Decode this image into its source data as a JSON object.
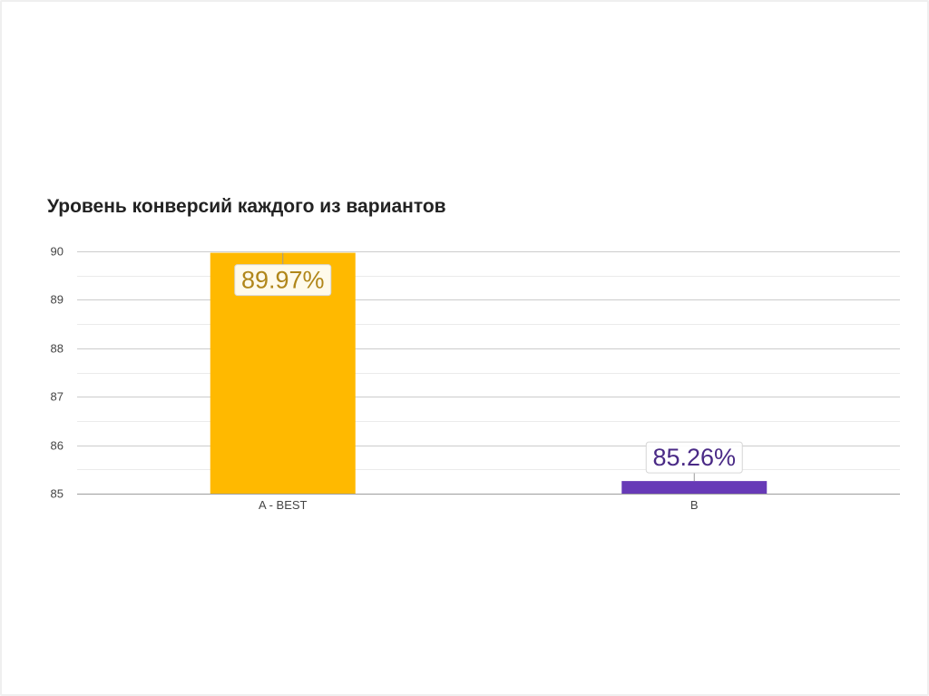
{
  "chart_data": {
    "type": "bar",
    "title": "Уровень конверсий каждого из вариантов",
    "categories": [
      "A - BEST",
      "B"
    ],
    "values": [
      89.97,
      85.26
    ],
    "data_labels": [
      "89.97%",
      "85.26%"
    ],
    "bar_colors": [
      "#FFB900",
      "#673AB7"
    ],
    "label_colors": [
      "#B0861A",
      "#4A2A86"
    ],
    "ylim": [
      85,
      90
    ],
    "yticks": [
      "90",
      "89",
      "88",
      "87",
      "86",
      "85"
    ],
    "grid": true,
    "xlabel": "",
    "ylabel": ""
  }
}
